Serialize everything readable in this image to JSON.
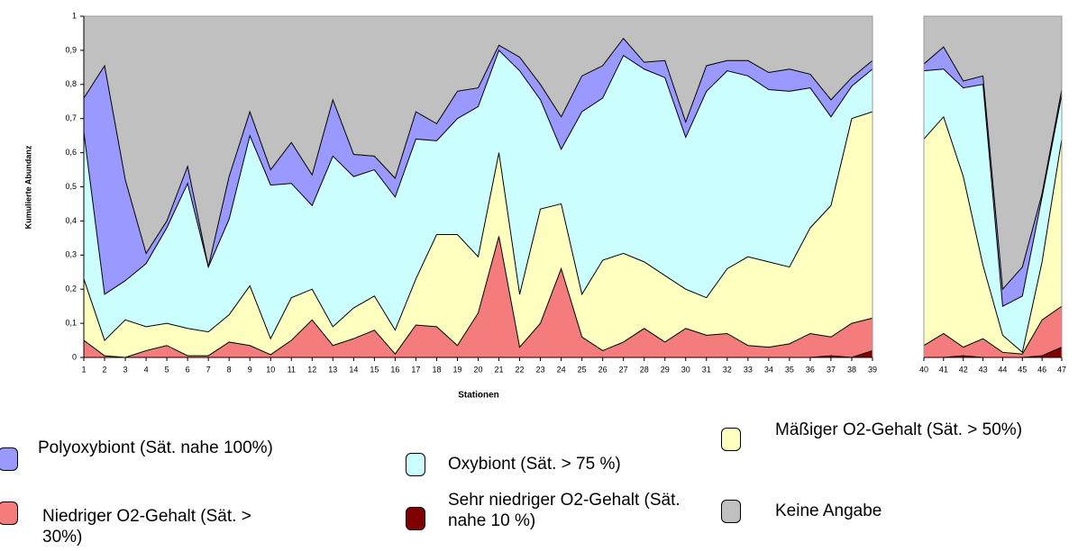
{
  "chart_data": {
    "type": "stacked_area",
    "xlabel": "Stationen",
    "ylabel": "Kumulierte Abundanz",
    "categories": [
      "1",
      "2",
      "3",
      "4",
      "5",
      "6",
      "7",
      "8",
      "9",
      "10",
      "11",
      "12",
      "13",
      "14",
      "15",
      "16",
      "17",
      "18",
      "19",
      "20",
      "21",
      "22",
      "23",
      "24",
      "25",
      "26",
      "27",
      "28",
      "29",
      "30",
      "31",
      "32",
      "33",
      "34",
      "35",
      "36",
      "37",
      "38",
      "39",
      "40",
      "41",
      "42",
      "43",
      "44",
      "45",
      "46",
      "47"
    ],
    "ylim": [
      0,
      1
    ],
    "yticks": [
      0,
      {
        "value": 0.1,
        "label": "0,1"
      },
      {
        "value": 0.2,
        "label": "0,2"
      },
      {
        "value": 0.3,
        "label": "0,3"
      },
      {
        "value": 0.4,
        "label": "0,4"
      },
      {
        "value": 0.5,
        "label": "0,5"
      },
      {
        "value": 0.6,
        "label": "0,6"
      },
      {
        "value": 0.7,
        "label": "0,7"
      },
      {
        "value": 0.8,
        "label": "0,8"
      },
      {
        "value": 0.9,
        "label": "0,9"
      },
      1
    ],
    "series": [
      {
        "name": "Sehr niedriger O2-Gehalt (Sät. nahe 10 %)",
        "color": "#800000",
        "values": [
          0,
          0,
          0,
          0,
          0,
          0,
          0,
          0,
          0,
          0,
          0,
          0,
          0,
          0,
          0,
          0,
          0,
          0,
          0,
          0,
          0,
          0,
          0,
          0,
          0,
          0,
          0,
          0,
          0,
          0,
          0,
          0,
          0,
          0,
          0,
          0,
          0.005,
          0,
          0.02,
          0,
          0,
          0.005,
          0,
          0,
          0,
          0.005,
          0.03
        ]
      },
      {
        "name": "Niedriger O2-Gehalt (Sät. > 30%)",
        "color": "#f47c7c",
        "values": [
          0.05,
          0.005,
          0,
          0.02,
          0.035,
          0.005,
          0.005,
          0.045,
          0.035,
          0.008,
          0.05,
          0.11,
          0.035,
          0.055,
          0.08,
          0.01,
          0.095,
          0.09,
          0.035,
          0.13,
          0.355,
          0.03,
          0.1,
          0.26,
          0.06,
          0.02,
          0.045,
          0.085,
          0.045,
          0.085,
          0.065,
          0.07,
          0.035,
          0.03,
          0.04,
          0.07,
          0.055,
          0.1,
          0.095,
          0.035,
          0.07,
          0.025,
          0.055,
          0.015,
          0.01,
          0.105,
          0.12
        ]
      },
      {
        "name": "Mäßiger O2-Gehalt (Sät. > 50%)",
        "color": "#ffffc0",
        "values": [
          0.18,
          0.045,
          0.11,
          0.07,
          0.065,
          0.08,
          0.07,
          0.08,
          0.175,
          0.047,
          0.125,
          0.09,
          0.055,
          0.09,
          0.1,
          0.07,
          0.135,
          0.27,
          0.325,
          0.165,
          0.245,
          0.155,
          0.335,
          0.19,
          0.125,
          0.265,
          0.26,
          0.195,
          0.195,
          0.115,
          0.11,
          0.19,
          0.26,
          0.25,
          0.225,
          0.31,
          0.385,
          0.6,
          0.605,
          0.605,
          0.635,
          0.5,
          0.215,
          0.05,
          0.005,
          0.17,
          0.49
        ]
      },
      {
        "name": "Oxybiont (Sät. > 75 %)",
        "color": "#ccffff",
        "values": [
          0.43,
          0.135,
          0.115,
          0.185,
          0.28,
          0.425,
          0.19,
          0.28,
          0.44,
          0.45,
          0.335,
          0.245,
          0.5,
          0.385,
          0.37,
          0.39,
          0.41,
          0.275,
          0.34,
          0.44,
          0.3,
          0.655,
          0.32,
          0.16,
          0.535,
          0.475,
          0.58,
          0.565,
          0.58,
          0.445,
          0.605,
          0.58,
          0.53,
          0.505,
          0.515,
          0.41,
          0.26,
          0.095,
          0.125,
          0.2,
          0.14,
          0.26,
          0.53,
          0.085,
          0.165,
          0.19,
          0.13
        ]
      },
      {
        "name": "Polyoxybiont (Sät. nahe 100%)",
        "color": "#9999ff",
        "values": [
          0.1,
          0.67,
          0.295,
          0.03,
          0.02,
          0.05,
          0,
          0.125,
          0.07,
          0.045,
          0.12,
          0.09,
          0.165,
          0.065,
          0.04,
          0.055,
          0.08,
          0.05,
          0.08,
          0.055,
          0.015,
          0.04,
          0.045,
          0.095,
          0.105,
          0.095,
          0.05,
          0.02,
          0.05,
          0.045,
          0.075,
          0.03,
          0.045,
          0.05,
          0.065,
          0.04,
          0.05,
          0.025,
          0.025,
          0.02,
          0.065,
          0.02,
          0.025,
          0.05,
          0.085,
          0.01,
          0.015
        ]
      },
      {
        "name": "Keine Angabe",
        "color": "#c0c0c0",
        "values": [
          0.24,
          0.145,
          0.48,
          0.695,
          0.6,
          0.44,
          0.735,
          0.47,
          0.28,
          0.45,
          0.37,
          0.465,
          0.245,
          0.405,
          0.41,
          0.475,
          0.28,
          0.315,
          0.22,
          0.21,
          0.085,
          0.12,
          0.2,
          0.295,
          0.175,
          0.145,
          0.065,
          0.135,
          0.13,
          0.31,
          0.145,
          0.13,
          0.13,
          0.165,
          0.155,
          0.17,
          0.245,
          0.18,
          0.13,
          0.14,
          0.09,
          0.19,
          0.175,
          0.8,
          0.735,
          0.52,
          0.215
        ]
      }
    ]
  }
}
